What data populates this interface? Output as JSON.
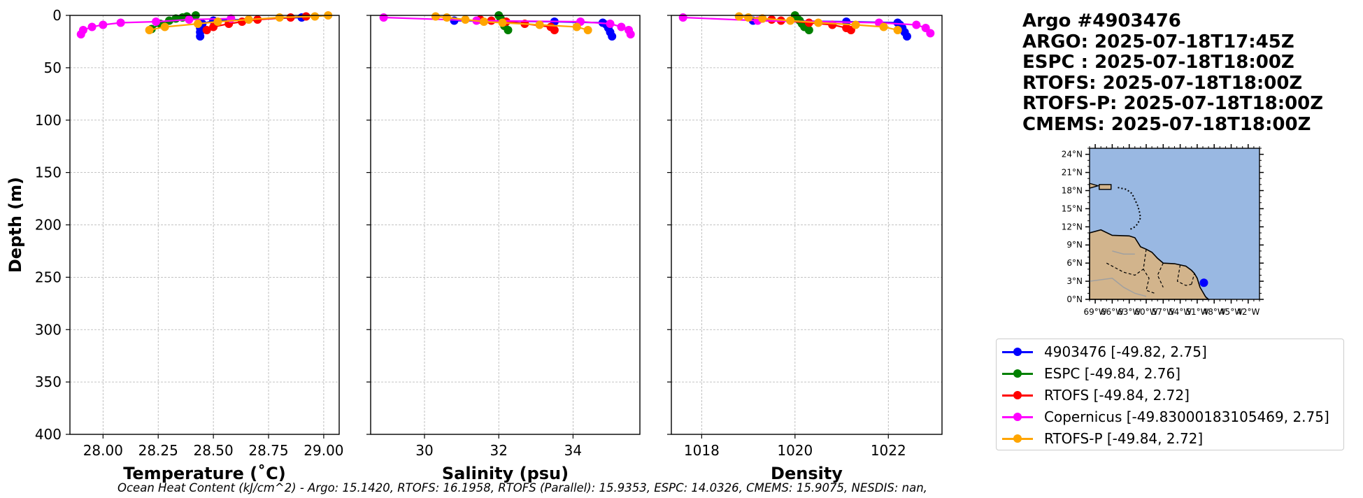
{
  "title_lines": [
    "Argo #4903476",
    "ARGO: 2025-07-18T17:45Z",
    "ESPC : 2025-07-18T18:00Z",
    "RTOFS: 2025-07-18T18:00Z",
    "RTOFS-P: 2025-07-18T18:00Z",
    "CMEMS: 2025-07-18T18:00Z"
  ],
  "footer": "Ocean Heat Content (kJ/cm^2) - Argo: 15.1420,  RTOFS: 16.1958,  RTOFS (Parallel): 15.9353,  ESPC: 14.0326,  CMEMS: 15.9075,  NESDIS: nan,",
  "colors": {
    "argo": "#0000ff",
    "espc": "#008000",
    "rtofs": "#ff0000",
    "copernicus": "#ff00ff",
    "rtofs_p": "#ffa500",
    "grid": "#b0b0b0",
    "ocean": "#99b8e2",
    "land": "#d2b48c"
  },
  "legend": [
    {
      "key": "argo",
      "label": "4903476 [-49.82, 2.75]"
    },
    {
      "key": "espc",
      "label": "ESPC [-49.84, 2.76]"
    },
    {
      "key": "rtofs",
      "label": "RTOFS [-49.84, 2.72]"
    },
    {
      "key": "copernicus",
      "label": "Copernicus [-49.83000183105469, 2.75]"
    },
    {
      "key": "rtofs_p",
      "label": "RTOFS-P [-49.84, 2.72]"
    }
  ],
  "chart_data": [
    {
      "type": "line",
      "xlabel": "Temperature (˚C)",
      "ylabel": "Depth (m)",
      "xlim": [
        27.85,
        29.07
      ],
      "ylim": [
        400,
        0
      ],
      "xticks": [
        28.0,
        28.25,
        28.5,
        28.75,
        29.0
      ],
      "xtick_labels": [
        "28.00",
        "28.25",
        "28.50",
        "28.75",
        "29.00"
      ],
      "yticks": [
        0,
        50,
        100,
        150,
        200,
        250,
        300,
        350,
        400
      ],
      "grid": true,
      "series": [
        {
          "key": "argo",
          "name": "4903476",
          "x": [
            28.9,
            28.5,
            28.45,
            28.44,
            28.44,
            28.44
          ],
          "y": [
            2,
            5,
            8,
            12,
            16,
            20
          ]
        },
        {
          "key": "espc",
          "name": "ESPC",
          "x": [
            28.42,
            28.38,
            28.36,
            28.33,
            28.3,
            28.26,
            28.22
          ],
          "y": [
            0,
            1,
            2,
            3,
            5,
            8,
            13
          ]
        },
        {
          "key": "rtofs",
          "name": "RTOFS",
          "x": [
            28.92,
            28.85,
            28.7,
            28.63,
            28.57,
            28.5,
            28.47
          ],
          "y": [
            1,
            2,
            4,
            6,
            8,
            11,
            14
          ]
        },
        {
          "key": "copernicus",
          "name": "Copernicus",
          "x": [
            28.58,
            28.39,
            28.24,
            28.08,
            28.0,
            27.95,
            27.91,
            27.9
          ],
          "y": [
            3,
            4,
            6,
            7,
            9,
            11,
            14,
            18
          ]
        },
        {
          "key": "rtofs_p",
          "name": "RTOFS-P",
          "x": [
            29.02,
            28.96,
            28.8,
            28.66,
            28.52,
            28.43,
            28.28,
            28.21
          ],
          "y": [
            0,
            1,
            2,
            4,
            6,
            8,
            11,
            14
          ]
        }
      ]
    },
    {
      "type": "line",
      "xlabel": "Salinity (psu)",
      "xlim": [
        28.55,
        35.8
      ],
      "ylim": [
        400,
        0
      ],
      "xticks": [
        30,
        32,
        34
      ],
      "xtick_labels": [
        "30",
        "32",
        "34"
      ],
      "grid": true,
      "series": [
        {
          "key": "argo",
          "name": "4903476",
          "x": [
            30.8,
            33.5,
            34.8,
            34.9,
            34.95,
            35.0,
            35.05
          ],
          "y": [
            5,
            6,
            7,
            9,
            12,
            16,
            20
          ]
        },
        {
          "key": "espc",
          "name": "ESPC",
          "x": [
            32.0,
            32.05,
            32.1,
            32.15,
            32.25
          ],
          "y": [
            0,
            3,
            6,
            10,
            14
          ]
        },
        {
          "key": "rtofs",
          "name": "RTOFS",
          "x": [
            31.5,
            31.8,
            32.2,
            32.7,
            33.4,
            33.5
          ],
          "y": [
            4,
            5,
            6,
            8,
            11,
            14
          ]
        },
        {
          "key": "copernicus",
          "name": "Copernicus",
          "x": [
            28.9,
            31.4,
            34.2,
            35.0,
            35.3,
            35.5,
            35.55
          ],
          "y": [
            2,
            5,
            6,
            8,
            11,
            14,
            18
          ]
        },
        {
          "key": "rtofs_p",
          "name": "RTOFS-P",
          "x": [
            30.3,
            30.6,
            31.1,
            31.6,
            32.1,
            33.1,
            34.1,
            34.4
          ],
          "y": [
            1,
            2,
            4,
            6,
            7,
            9,
            11,
            14
          ]
        }
      ]
    },
    {
      "type": "line",
      "xlabel": "Density",
      "xlim": [
        1017.35,
        1023.15
      ],
      "ylim": [
        400,
        0
      ],
      "xticks": [
        1018,
        1020,
        1022
      ],
      "xtick_labels": [
        "1018",
        "1020",
        "1022"
      ],
      "grid": true,
      "series": [
        {
          "key": "argo",
          "name": "4903476",
          "x": [
            1019.1,
            1021.1,
            1022.2,
            1022.25,
            1022.3,
            1022.35,
            1022.4
          ],
          "y": [
            5,
            6,
            7,
            9,
            12,
            16,
            20
          ]
        },
        {
          "key": "espc",
          "name": "ESPC",
          "x": [
            1020.0,
            1020.05,
            1020.1,
            1020.15,
            1020.2,
            1020.3
          ],
          "y": [
            0,
            3,
            5,
            8,
            11,
            14
          ]
        },
        {
          "key": "rtofs",
          "name": "RTOFS",
          "x": [
            1019.3,
            1019.5,
            1019.7,
            1020.3,
            1020.8,
            1021.1,
            1021.2
          ],
          "y": [
            3,
            4,
            5,
            7,
            9,
            12,
            14
          ]
        },
        {
          "key": "copernicus",
          "name": "Copernicus",
          "x": [
            1017.6,
            1019.2,
            1021.8,
            1022.6,
            1022.8,
            1022.9
          ],
          "y": [
            2,
            5,
            7,
            9,
            12,
            17
          ]
        },
        {
          "key": "rtofs_p",
          "name": "RTOFS-P",
          "x": [
            1018.8,
            1019.0,
            1019.3,
            1019.9,
            1020.5,
            1021.3,
            1021.9,
            1022.2
          ],
          "y": [
            1,
            2,
            3,
            5,
            7,
            9,
            11,
            14
          ]
        }
      ]
    },
    {
      "type": "map",
      "lon_range": [
        -70,
        -40
      ],
      "lat_range": [
        0,
        25
      ],
      "lat_tick_labels": [
        "0°N",
        "3°N",
        "6°N",
        "9°N",
        "12°N",
        "15°N",
        "18°N",
        "21°N",
        "24°N"
      ],
      "lon_tick_labels": [
        "69°W",
        "66°W",
        "63°W",
        "60°W",
        "57°W",
        "54°W",
        "51°W",
        "48°W",
        "45°W",
        "42°W"
      ],
      "float_position": {
        "lon": -49.82,
        "lat": 2.75
      }
    }
  ]
}
